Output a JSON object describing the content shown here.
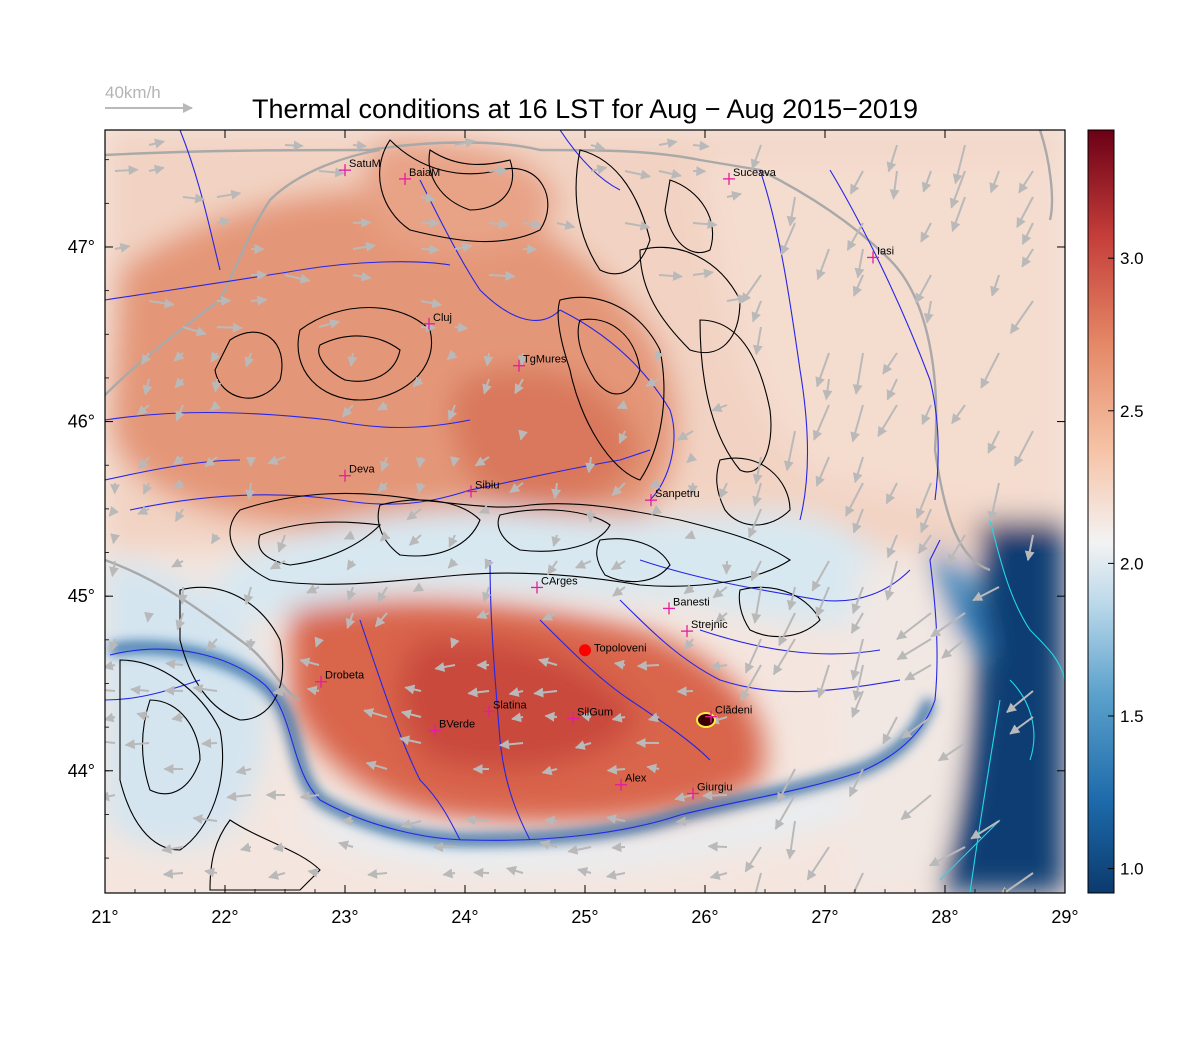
{
  "title": "Thermal conditions at 16 LST for Aug − Aug  2015−2019",
  "wind_reference": {
    "label": "40km/h",
    "color": "#b4b4b4"
  },
  "map": {
    "lon_range": [
      21,
      29
    ],
    "lat_range": [
      43.3,
      47.67
    ],
    "x_ticks": [
      "21°",
      "22°",
      "23°",
      "24°",
      "25°",
      "26°",
      "27°",
      "28°",
      "29°"
    ],
    "y_ticks": [
      "44°",
      "45°",
      "46°",
      "47°"
    ],
    "colors": {
      "river": "#2626e6",
      "contour": "#000000",
      "border": "#a9a9a9",
      "coast": "#21d8e8",
      "station": "#e51ba0",
      "highlight": "#ff0000"
    },
    "cities": [
      {
        "name": "SatuM",
        "lon": 23.0,
        "lat": 47.44
      },
      {
        "name": "BaiaM",
        "lon": 23.5,
        "lat": 47.39
      },
      {
        "name": "Suceava",
        "lon": 26.2,
        "lat": 47.39
      },
      {
        "name": "Iasi",
        "lon": 27.4,
        "lat": 46.94
      },
      {
        "name": "Cluj",
        "lon": 23.7,
        "lat": 46.56
      },
      {
        "name": "TgMures",
        "lon": 24.45,
        "lat": 46.32
      },
      {
        "name": "Deva",
        "lon": 23.0,
        "lat": 45.69
      },
      {
        "name": "Sibiu",
        "lon": 24.05,
        "lat": 45.6
      },
      {
        "name": "Sanpetru",
        "lon": 25.55,
        "lat": 45.55
      },
      {
        "name": "CArges",
        "lon": 24.6,
        "lat": 45.05
      },
      {
        "name": "Banesti",
        "lon": 25.7,
        "lat": 44.93
      },
      {
        "name": "Strejnic",
        "lon": 25.85,
        "lat": 44.8
      },
      {
        "name": "Drobeta",
        "lon": 22.8,
        "lat": 44.51
      },
      {
        "name": "Slatina",
        "lon": 24.2,
        "lat": 44.34
      },
      {
        "name": "SilGum",
        "lon": 24.9,
        "lat": 44.3
      },
      {
        "name": "Ciorogarla",
        "lon": 26.05,
        "lat": 44.31,
        "display": "Clãdeni"
      },
      {
        "name": "BVerde",
        "lon": 23.75,
        "lat": 44.23
      },
      {
        "name": "Alex",
        "lon": 25.3,
        "lat": 43.92
      },
      {
        "name": "Giurgiu",
        "lon": 25.9,
        "lat": 43.87
      }
    ],
    "highlight_station": {
      "name": "Topoloveni",
      "lon": 25.0,
      "lat": 44.69
    }
  },
  "colorbar": {
    "ticks": [
      "1.0",
      "1.5",
      "2.0",
      "2.5",
      "3.0"
    ],
    "tick_values": [
      1.0,
      1.5,
      2.0,
      2.5,
      3.0
    ],
    "range": [
      0.92,
      3.42
    ],
    "colors": [
      "#0b3a6e",
      "#1d6aaa",
      "#5ba1cc",
      "#bcd9ea",
      "#f3f3f3",
      "#f6c3a6",
      "#e48866",
      "#c53e3a",
      "#6b0016"
    ]
  }
}
